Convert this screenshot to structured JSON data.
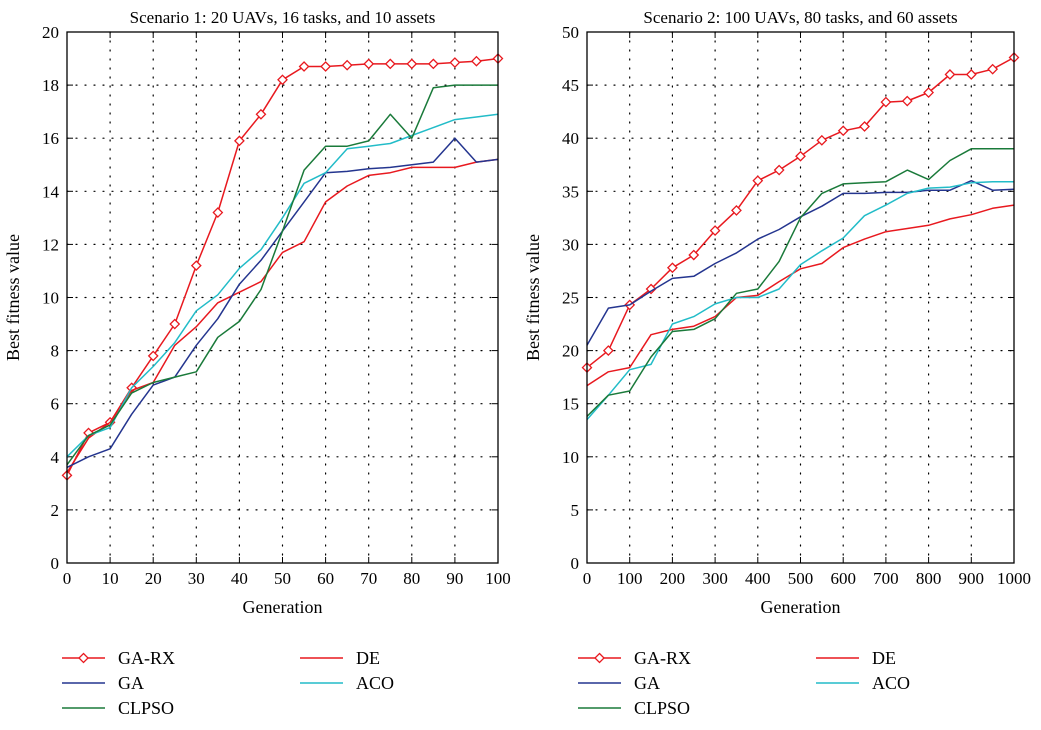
{
  "chart_data": [
    {
      "type": "line",
      "title": "Scenario 1: 20 UAVs, 16 tasks, and 10 assets",
      "xlabel": "Generation",
      "ylabel": "Best fitness value",
      "xlim": [
        0,
        100
      ],
      "ylim": [
        0,
        20
      ],
      "xticks": [
        0,
        10,
        20,
        30,
        40,
        50,
        60,
        70,
        80,
        90,
        100
      ],
      "yticks": [
        0,
        2,
        4,
        6,
        8,
        10,
        12,
        14,
        16,
        18,
        20
      ],
      "grid": "dotted",
      "legend_position": "below",
      "series": [
        {
          "name": "GA-RX",
          "color": "#e8191f",
          "marker": "diamond",
          "x": [
            0,
            5,
            10,
            15,
            20,
            25,
            30,
            35,
            40,
            45,
            50,
            55,
            60,
            65,
            70,
            75,
            80,
            85,
            90,
            95,
            100
          ],
          "values": [
            3.3,
            4.9,
            5.3,
            6.6,
            7.8,
            9.0,
            11.2,
            13.2,
            15.9,
            16.9,
            18.2,
            18.7,
            18.7,
            18.75,
            18.8,
            18.8,
            18.8,
            18.8,
            18.85,
            18.9,
            19.0
          ]
        },
        {
          "name": "DE",
          "color": "#e8191f",
          "marker": "none",
          "x": [
            0,
            5,
            10,
            15,
            20,
            25,
            30,
            35,
            40,
            45,
            50,
            55,
            60,
            65,
            70,
            75,
            80,
            85,
            90,
            95,
            100
          ],
          "values": [
            3.4,
            4.7,
            5.3,
            6.5,
            6.8,
            8.2,
            8.9,
            9.8,
            10.2,
            10.6,
            11.7,
            12.1,
            13.6,
            14.2,
            14.6,
            14.7,
            14.9,
            14.9,
            14.9,
            15.1,
            15.2
          ]
        },
        {
          "name": "GA",
          "color": "#24358f",
          "marker": "none",
          "x": [
            0,
            5,
            10,
            15,
            20,
            25,
            30,
            35,
            40,
            45,
            50,
            55,
            60,
            65,
            70,
            75,
            80,
            85,
            90,
            95,
            100
          ],
          "values": [
            3.6,
            4.0,
            4.3,
            5.6,
            6.7,
            7.0,
            8.2,
            9.2,
            10.5,
            11.4,
            12.5,
            13.6,
            14.7,
            14.75,
            14.85,
            14.9,
            15.0,
            15.1,
            16.0,
            15.1,
            15.2
          ]
        },
        {
          "name": "ACO",
          "color": "#22bcc8",
          "marker": "none",
          "x": [
            0,
            5,
            10,
            15,
            20,
            25,
            30,
            35,
            40,
            45,
            50,
            55,
            60,
            65,
            70,
            75,
            80,
            85,
            90,
            95,
            100
          ],
          "values": [
            4.0,
            4.8,
            5.1,
            6.6,
            7.4,
            8.3,
            9.5,
            10.1,
            11.1,
            11.8,
            13.0,
            14.3,
            14.7,
            15.6,
            15.7,
            15.8,
            16.1,
            16.4,
            16.7,
            16.8,
            16.9
          ]
        },
        {
          "name": "CLPSO",
          "color": "#1a7a3a",
          "marker": "none",
          "x": [
            0,
            5,
            10,
            15,
            20,
            25,
            30,
            35,
            40,
            45,
            50,
            55,
            60,
            65,
            70,
            75,
            80,
            85,
            90,
            95,
            100
          ],
          "values": [
            3.7,
            4.8,
            5.2,
            6.4,
            6.8,
            7.0,
            7.2,
            8.5,
            9.1,
            10.3,
            12.5,
            14.8,
            15.7,
            15.7,
            15.9,
            16.9,
            16.0,
            17.9,
            18.0,
            18.0,
            18.0
          ]
        }
      ]
    },
    {
      "type": "line",
      "title": "Scenario 2: 100 UAVs, 80 tasks, and 60 assets",
      "xlabel": "Generation",
      "ylabel": "Best fitness value",
      "xlim": [
        0,
        1000
      ],
      "ylim": [
        0,
        50
      ],
      "xticks": [
        0,
        100,
        200,
        300,
        400,
        500,
        600,
        700,
        800,
        900,
        1000
      ],
      "yticks": [
        0,
        5,
        10,
        15,
        20,
        25,
        30,
        35,
        40,
        45,
        50
      ],
      "grid": "dotted",
      "legend_position": "below",
      "series": [
        {
          "name": "GA-RX",
          "color": "#e8191f",
          "marker": "diamond",
          "x": [
            0,
            50,
            100,
            150,
            200,
            250,
            300,
            350,
            400,
            450,
            500,
            550,
            600,
            650,
            700,
            750,
            800,
            850,
            900,
            950,
            1000
          ],
          "values": [
            18.4,
            20.0,
            24.3,
            25.8,
            27.8,
            29.0,
            31.3,
            33.2,
            36.0,
            37.0,
            38.3,
            39.8,
            40.7,
            41.1,
            43.4,
            43.5,
            44.3,
            46.0,
            46.0,
            46.5,
            47.6
          ]
        },
        {
          "name": "DE",
          "color": "#e8191f",
          "marker": "none",
          "x": [
            0,
            50,
            100,
            150,
            200,
            250,
            300,
            350,
            400,
            450,
            500,
            550,
            600,
            650,
            700,
            750,
            800,
            850,
            900,
            950,
            1000
          ],
          "values": [
            16.7,
            18.0,
            18.4,
            21.5,
            22.0,
            22.3,
            23.2,
            25.0,
            25.2,
            26.5,
            27.7,
            28.2,
            29.7,
            30.5,
            31.2,
            31.5,
            31.8,
            32.4,
            32.8,
            33.4,
            33.7
          ]
        },
        {
          "name": "GA",
          "color": "#24358f",
          "marker": "none",
          "x": [
            0,
            50,
            100,
            150,
            200,
            250,
            300,
            350,
            400,
            450,
            500,
            550,
            600,
            650,
            700,
            750,
            800,
            850,
            900,
            950,
            1000
          ],
          "values": [
            20.5,
            24.0,
            24.3,
            25.6,
            26.8,
            27.0,
            28.2,
            29.2,
            30.5,
            31.4,
            32.6,
            33.6,
            34.8,
            34.8,
            34.9,
            34.9,
            35.1,
            35.1,
            36.0,
            35.1,
            35.2
          ]
        },
        {
          "name": "ACO",
          "color": "#22bcc8",
          "marker": "none",
          "x": [
            0,
            50,
            100,
            150,
            200,
            250,
            300,
            350,
            400,
            450,
            500,
            550,
            600,
            650,
            700,
            750,
            800,
            850,
            900,
            950,
            1000
          ],
          "values": [
            13.5,
            15.8,
            18.2,
            18.7,
            22.5,
            23.2,
            24.4,
            25.0,
            25.0,
            25.8,
            28.1,
            29.4,
            30.6,
            32.7,
            33.7,
            34.8,
            35.3,
            35.4,
            35.8,
            35.9,
            35.9
          ]
        },
        {
          "name": "CLPSO",
          "color": "#1a7a3a",
          "marker": "none",
          "x": [
            0,
            50,
            100,
            150,
            200,
            250,
            300,
            350,
            400,
            450,
            500,
            550,
            600,
            650,
            700,
            750,
            800,
            850,
            900,
            950,
            1000
          ],
          "values": [
            13.8,
            15.8,
            16.2,
            19.4,
            21.8,
            22.0,
            23.0,
            25.4,
            25.8,
            28.4,
            32.5,
            34.8,
            35.7,
            35.8,
            35.9,
            37.0,
            36.1,
            37.9,
            39.0,
            39.0,
            39.0
          ]
        }
      ]
    }
  ]
}
